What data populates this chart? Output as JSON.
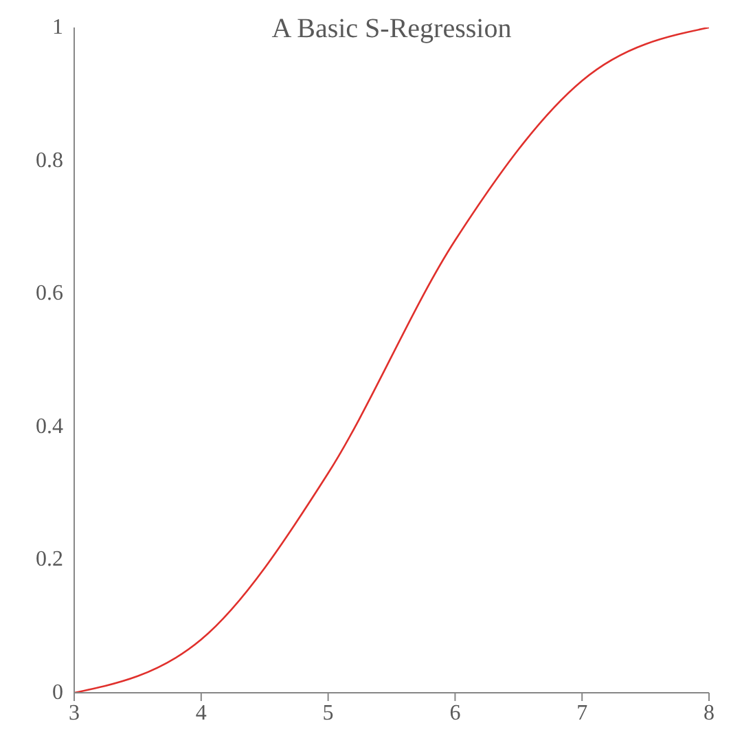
{
  "chart_data": {
    "type": "line",
    "title": "A Basic S-Regression",
    "x": [
      3,
      4,
      5,
      6,
      7,
      8
    ],
    "series": [
      {
        "color": "#e0302c",
        "values": [
          0,
          0.08,
          0.33,
          0.68,
          0.92,
          1
        ]
      }
    ],
    "xlim": [
      3,
      8
    ],
    "xticks": [
      3,
      4,
      5,
      6,
      7,
      8
    ],
    "ylim": [
      0,
      1
    ],
    "yticks": [
      0,
      0.2,
      0.4,
      0.6,
      0.8,
      1
    ],
    "grid": false,
    "legend": false,
    "marker": "none",
    "line_style": "solid"
  }
}
